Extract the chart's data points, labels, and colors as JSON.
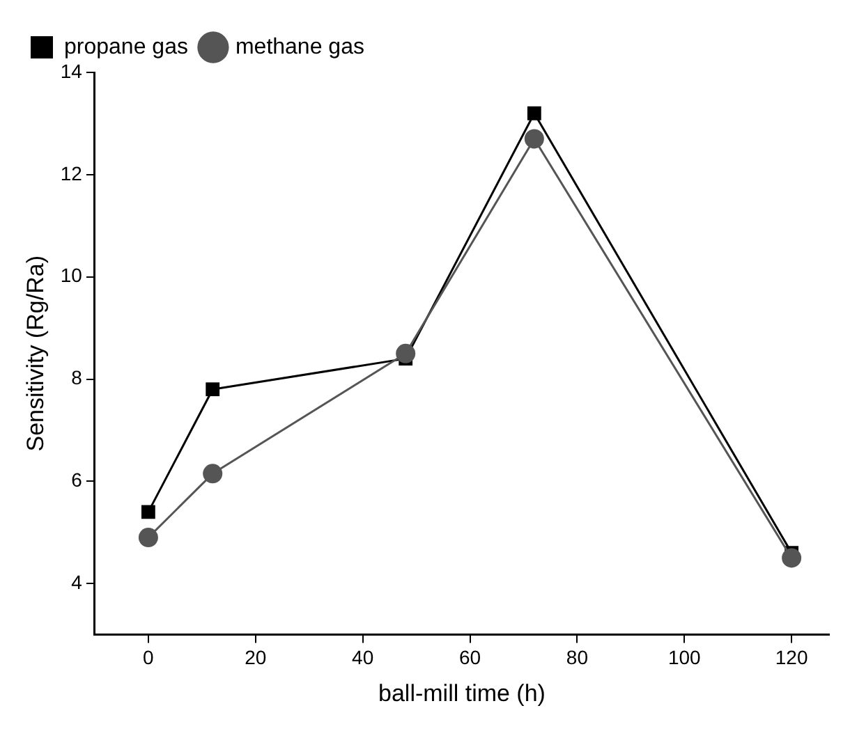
{
  "chart_data": {
    "type": "line",
    "xlabel": "ball-mill time (h)",
    "ylabel": "Sensitivity (Rg/Ra)",
    "xlim": [
      -10,
      127
    ],
    "xticks": [
      0,
      20,
      40,
      60,
      80,
      100,
      120
    ],
    "ylim": [
      3,
      14
    ],
    "yticks": [
      4,
      6,
      8,
      10,
      12,
      14
    ],
    "grid": false,
    "legend": "top left",
    "line_style": "solid",
    "series": [
      {
        "name": "propane gas",
        "color": "#000000",
        "marker": "square",
        "x": [
          0,
          12,
          48,
          72,
          120
        ],
        "values": [
          5.4,
          7.8,
          8.4,
          13.2,
          4.6
        ]
      },
      {
        "name": "methane gas",
        "color": "#555555",
        "marker": "circle",
        "x": [
          0,
          12,
          48,
          72,
          120
        ],
        "values": [
          4.9,
          6.15,
          8.5,
          12.7,
          4.5
        ]
      }
    ]
  }
}
